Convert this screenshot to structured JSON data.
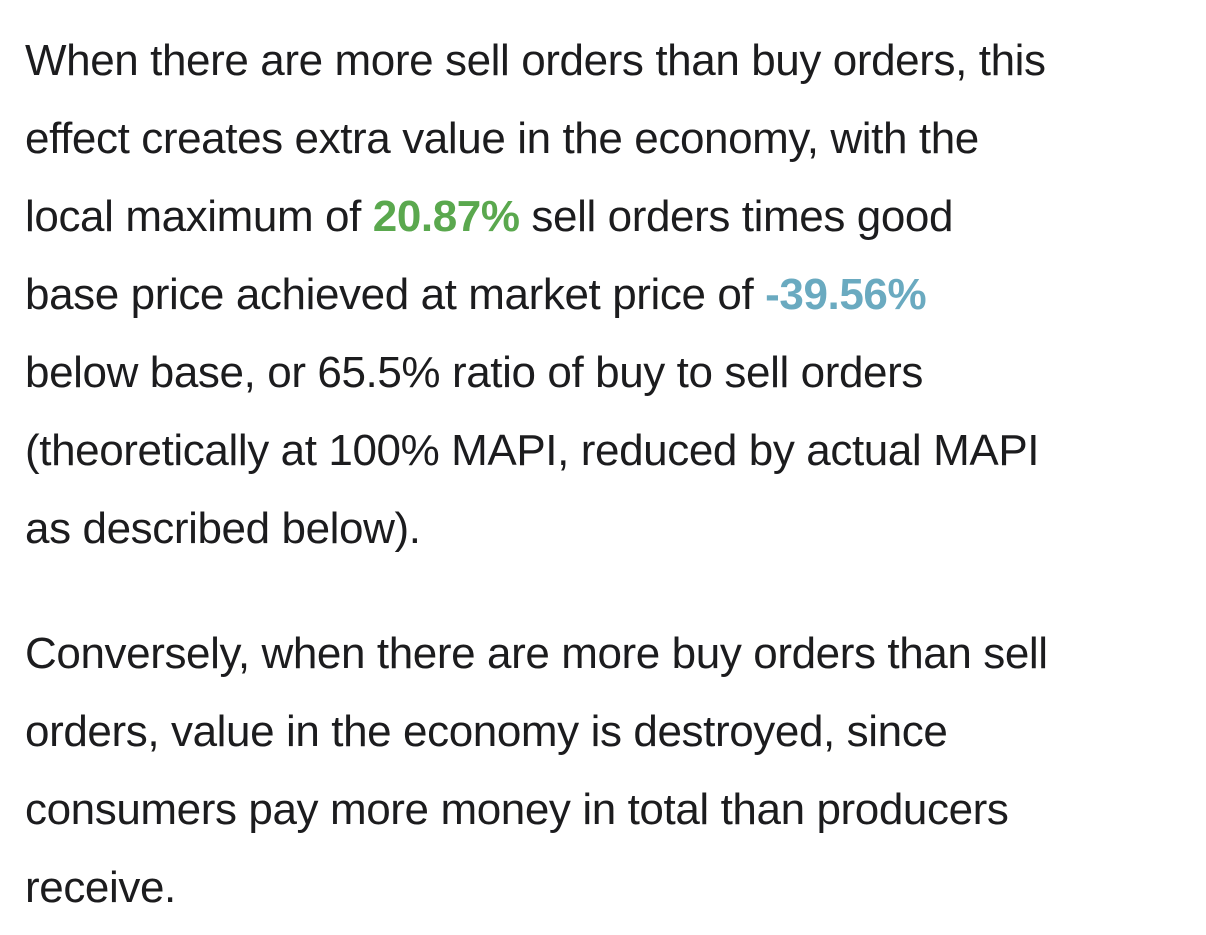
{
  "paragraph1": {
    "line1": "When there are more sell orders than buy orders, this",
    "line2": "effect creates extra value in the economy, with the",
    "line3_before": "local maximum of ",
    "max_value": "20.87%",
    "line3_after": " sell orders times good",
    "line4_before": "base price achieved at market price of ",
    "price_value": "-39.56%",
    "line5": "below base, or 65.5% ratio of buy to sell orders",
    "line6": "(theoretically at 100% MAPI, reduced by actual MAPI",
    "line7": "as described below)."
  },
  "paragraph2": {
    "line1": "Conversely, when there are more buy orders than sell",
    "line2": "orders, value in the economy is destroyed, since",
    "line3": "consumers pay more money in total than producers",
    "line4": "receive."
  },
  "colors": {
    "max_value": "#5aa84e",
    "price_value": "#6aaac0",
    "text": "#1c1c1e"
  }
}
